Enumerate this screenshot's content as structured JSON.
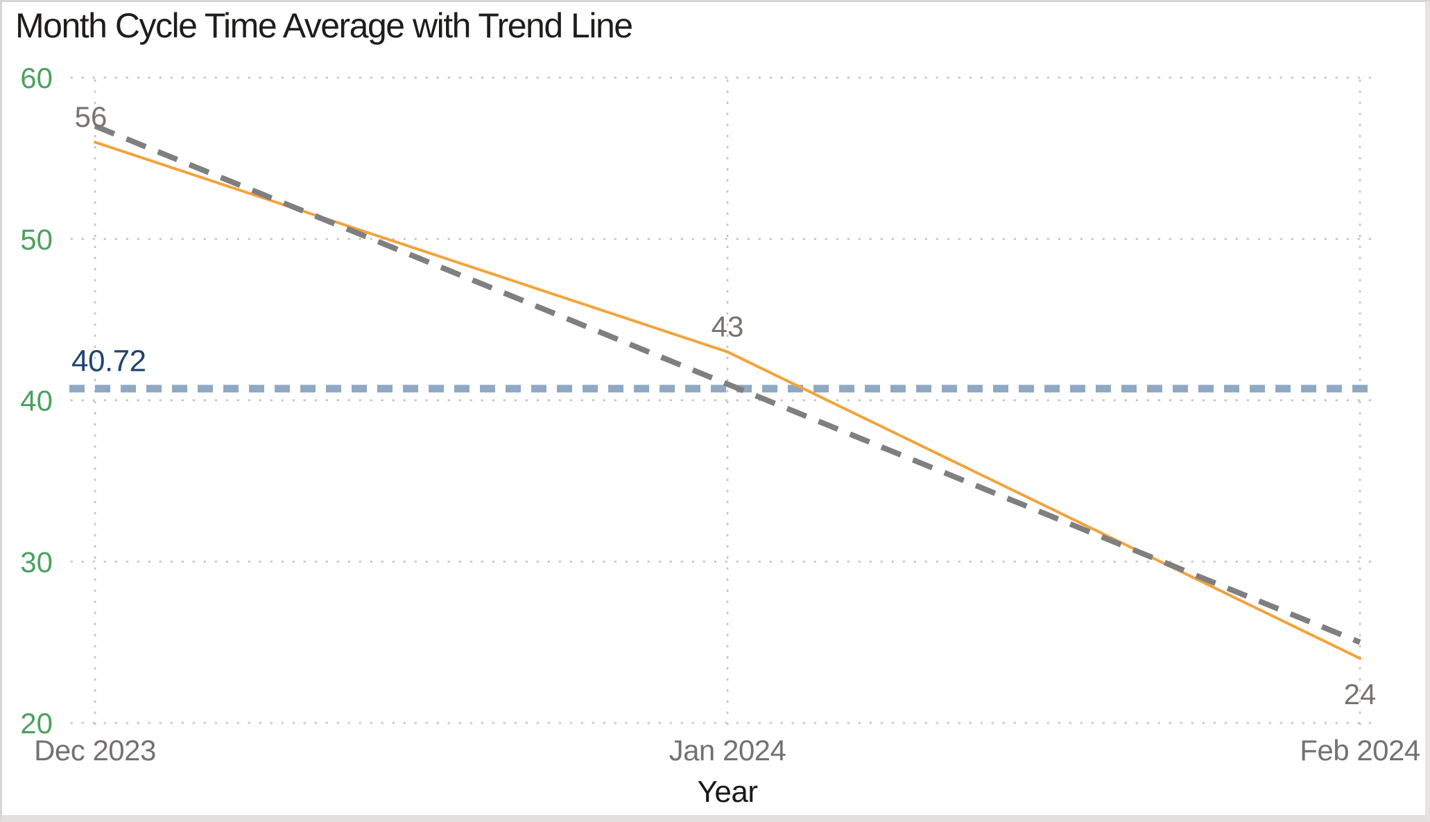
{
  "chart_data": {
    "type": "line",
    "title": "Month Cycle Time Average with Trend Line",
    "xlabel": "Year",
    "ylabel": "",
    "categories": [
      "Dec 2023",
      "Jan 2024",
      "Feb 2024"
    ],
    "series": [
      {
        "name": "month-cycle-time-average",
        "style": "solid",
        "color": "#F2A33C",
        "values": [
          56,
          43,
          24
        ],
        "data_labels": [
          56,
          43,
          24
        ],
        "data_label_positions": [
          "above",
          "above",
          "below"
        ]
      },
      {
        "name": "trend-line",
        "style": "dashed",
        "color": "#7F7F7F",
        "values": [
          57,
          41,
          25
        ],
        "data_labels": null
      }
    ],
    "average_line": {
      "label": "40.72",
      "value": 40.72,
      "line_color": "#8FA9C3",
      "label_color": "#1F4470"
    },
    "ylim": [
      20,
      60
    ],
    "yticks": [
      20,
      30,
      40,
      50,
      60
    ],
    "grid": "dotted",
    "legend": "none",
    "colors": {
      "ytick_color": "#4BA15F",
      "xtick_color": "#757170",
      "data_label_color": "#777370",
      "gridline_color": "#C9C7C4",
      "title_color": "#1F1D1B",
      "xaxis_title_color": "#1A1918"
    }
  }
}
